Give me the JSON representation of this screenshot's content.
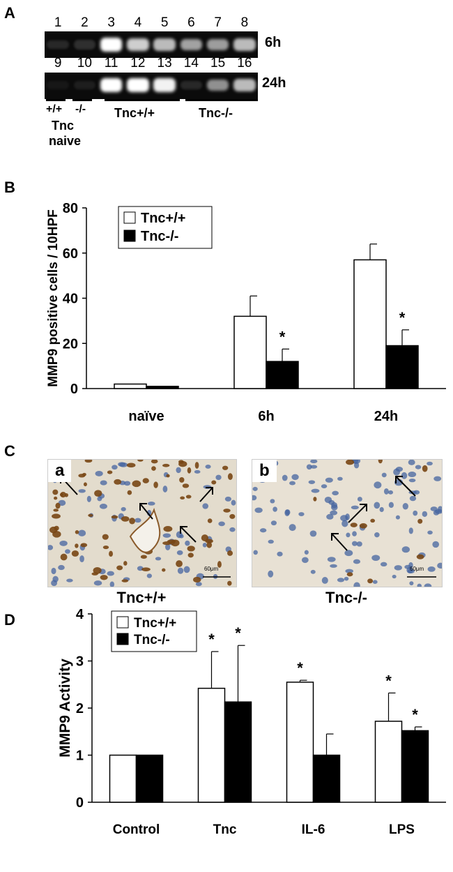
{
  "panel_a": {
    "letter": "A",
    "rows": [
      {
        "time": "6h",
        "lanes": [
          "1",
          "2",
          "3",
          "4",
          "5",
          "6",
          "7",
          "8"
        ],
        "intensity": [
          0.12,
          0.15,
          1.0,
          0.8,
          0.72,
          0.62,
          0.6,
          0.72
        ]
      },
      {
        "time": "24h",
        "lanes": [
          "9",
          "10",
          "11",
          "12",
          "13",
          "14",
          "15",
          "16"
        ],
        "intensity": [
          0.05,
          0.08,
          1.0,
          1.0,
          0.95,
          0.12,
          0.55,
          0.72
        ]
      }
    ],
    "groups": {
      "wt": "+/+",
      "ko": "-/-",
      "naive_line1": "Tnc",
      "naive_line2": "naive",
      "tnc_wt": "Tnc+/+",
      "tnc_ko": "Tnc-/-"
    }
  },
  "chart_data": [
    {
      "panel": "B",
      "type": "bar",
      "ylabel": "MMP9 positive cells / 10HPF",
      "ylim": [
        0,
        80
      ],
      "yticks": [
        0,
        20,
        40,
        60,
        80
      ],
      "categories": [
        "naïve",
        "6h",
        "24h"
      ],
      "series": [
        {
          "name": "Tnc+/+",
          "values": [
            2,
            32,
            57
          ],
          "errors": [
            0,
            9,
            7
          ],
          "color": "#ffffff"
        },
        {
          "name": "Tnc-/-",
          "values": [
            1,
            12,
            19
          ],
          "errors": [
            0,
            5.5,
            7
          ],
          "color": "#000000"
        }
      ],
      "annotations": [
        {
          "category": "6h",
          "series": "Tnc-/-",
          "text": "*"
        },
        {
          "category": "24h",
          "series": "Tnc-/-",
          "text": "*"
        }
      ],
      "legend": "top-left"
    },
    {
      "panel": "D",
      "type": "bar",
      "ylabel": "MMP9 Activity",
      "ylim": [
        0,
        4
      ],
      "yticks": [
        0,
        1,
        2,
        3,
        4
      ],
      "categories": [
        "Control",
        "Tnc",
        "IL-6",
        "LPS"
      ],
      "series": [
        {
          "name": "Tnc+/+",
          "values": [
            1.0,
            2.42,
            2.55,
            1.72
          ],
          "errors": [
            0,
            0.78,
            0.04,
            0.6
          ],
          "color": "#ffffff"
        },
        {
          "name": "Tnc-/-",
          "values": [
            1.0,
            2.13,
            1.0,
            1.52
          ],
          "errors": [
            0,
            1.2,
            0.45,
            0.08
          ],
          "color": "#000000"
        }
      ],
      "annotations": [
        {
          "category": "Tnc",
          "series": "Tnc+/+",
          "text": "*"
        },
        {
          "category": "Tnc",
          "series": "Tnc-/-",
          "text": "*"
        },
        {
          "category": "IL-6",
          "series": "Tnc+/+",
          "text": "*"
        },
        {
          "category": "LPS",
          "series": "Tnc+/+",
          "text": "*"
        },
        {
          "category": "LPS",
          "series": "Tnc-/-",
          "text": "*"
        }
      ],
      "legend": "top-left"
    }
  ],
  "panel_b": {
    "letter": "B"
  },
  "panel_c": {
    "letter": "C",
    "images": [
      {
        "tag": "a",
        "caption": "Tnc+/+",
        "scale": "60μm"
      },
      {
        "tag": "b",
        "caption": "Tnc-/-",
        "scale": "60μm"
      }
    ]
  },
  "panel_d": {
    "letter": "D"
  }
}
